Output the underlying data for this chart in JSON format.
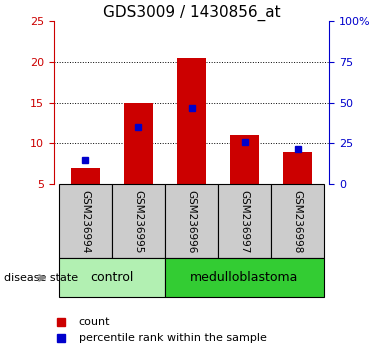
{
  "title": "GDS3009 / 1430856_at",
  "samples": [
    "GSM236994",
    "GSM236995",
    "GSM236996",
    "GSM236997",
    "GSM236998"
  ],
  "bar_bottoms": [
    5,
    5,
    5,
    5,
    5
  ],
  "bar_tops": [
    7.0,
    15.0,
    20.5,
    11.0,
    9.0
  ],
  "blue_positions": [
    8.0,
    12.0,
    14.3,
    10.2,
    9.3
  ],
  "bar_color": "#cc0000",
  "blue_color": "#0000cc",
  "ylim_left": [
    5,
    25
  ],
  "ylim_right": [
    0,
    100
  ],
  "yticks_left": [
    5,
    10,
    15,
    20,
    25
  ],
  "yticks_right": [
    0,
    25,
    50,
    75,
    100
  ],
  "yticklabels_right": [
    "0",
    "25",
    "50",
    "75",
    "100%"
  ],
  "grid_lines": [
    10,
    15,
    20
  ],
  "groups": [
    {
      "label": "control",
      "indices": [
        0,
        1
      ],
      "color": "#b2f0b2"
    },
    {
      "label": "medulloblastoma",
      "indices": [
        2,
        3,
        4
      ],
      "color": "#33cc33"
    }
  ],
  "group_label": "disease state",
  "legend_count_label": "count",
  "legend_pct_label": "percentile rank within the sample",
  "sample_box_color": "#cccccc",
  "plot_bg": "#ffffff",
  "title_fontsize": 11,
  "tick_fontsize": 8,
  "label_fontsize": 8,
  "group_fontsize": 9,
  "left_axis_color": "#cc0000",
  "right_axis_color": "#0000cc"
}
